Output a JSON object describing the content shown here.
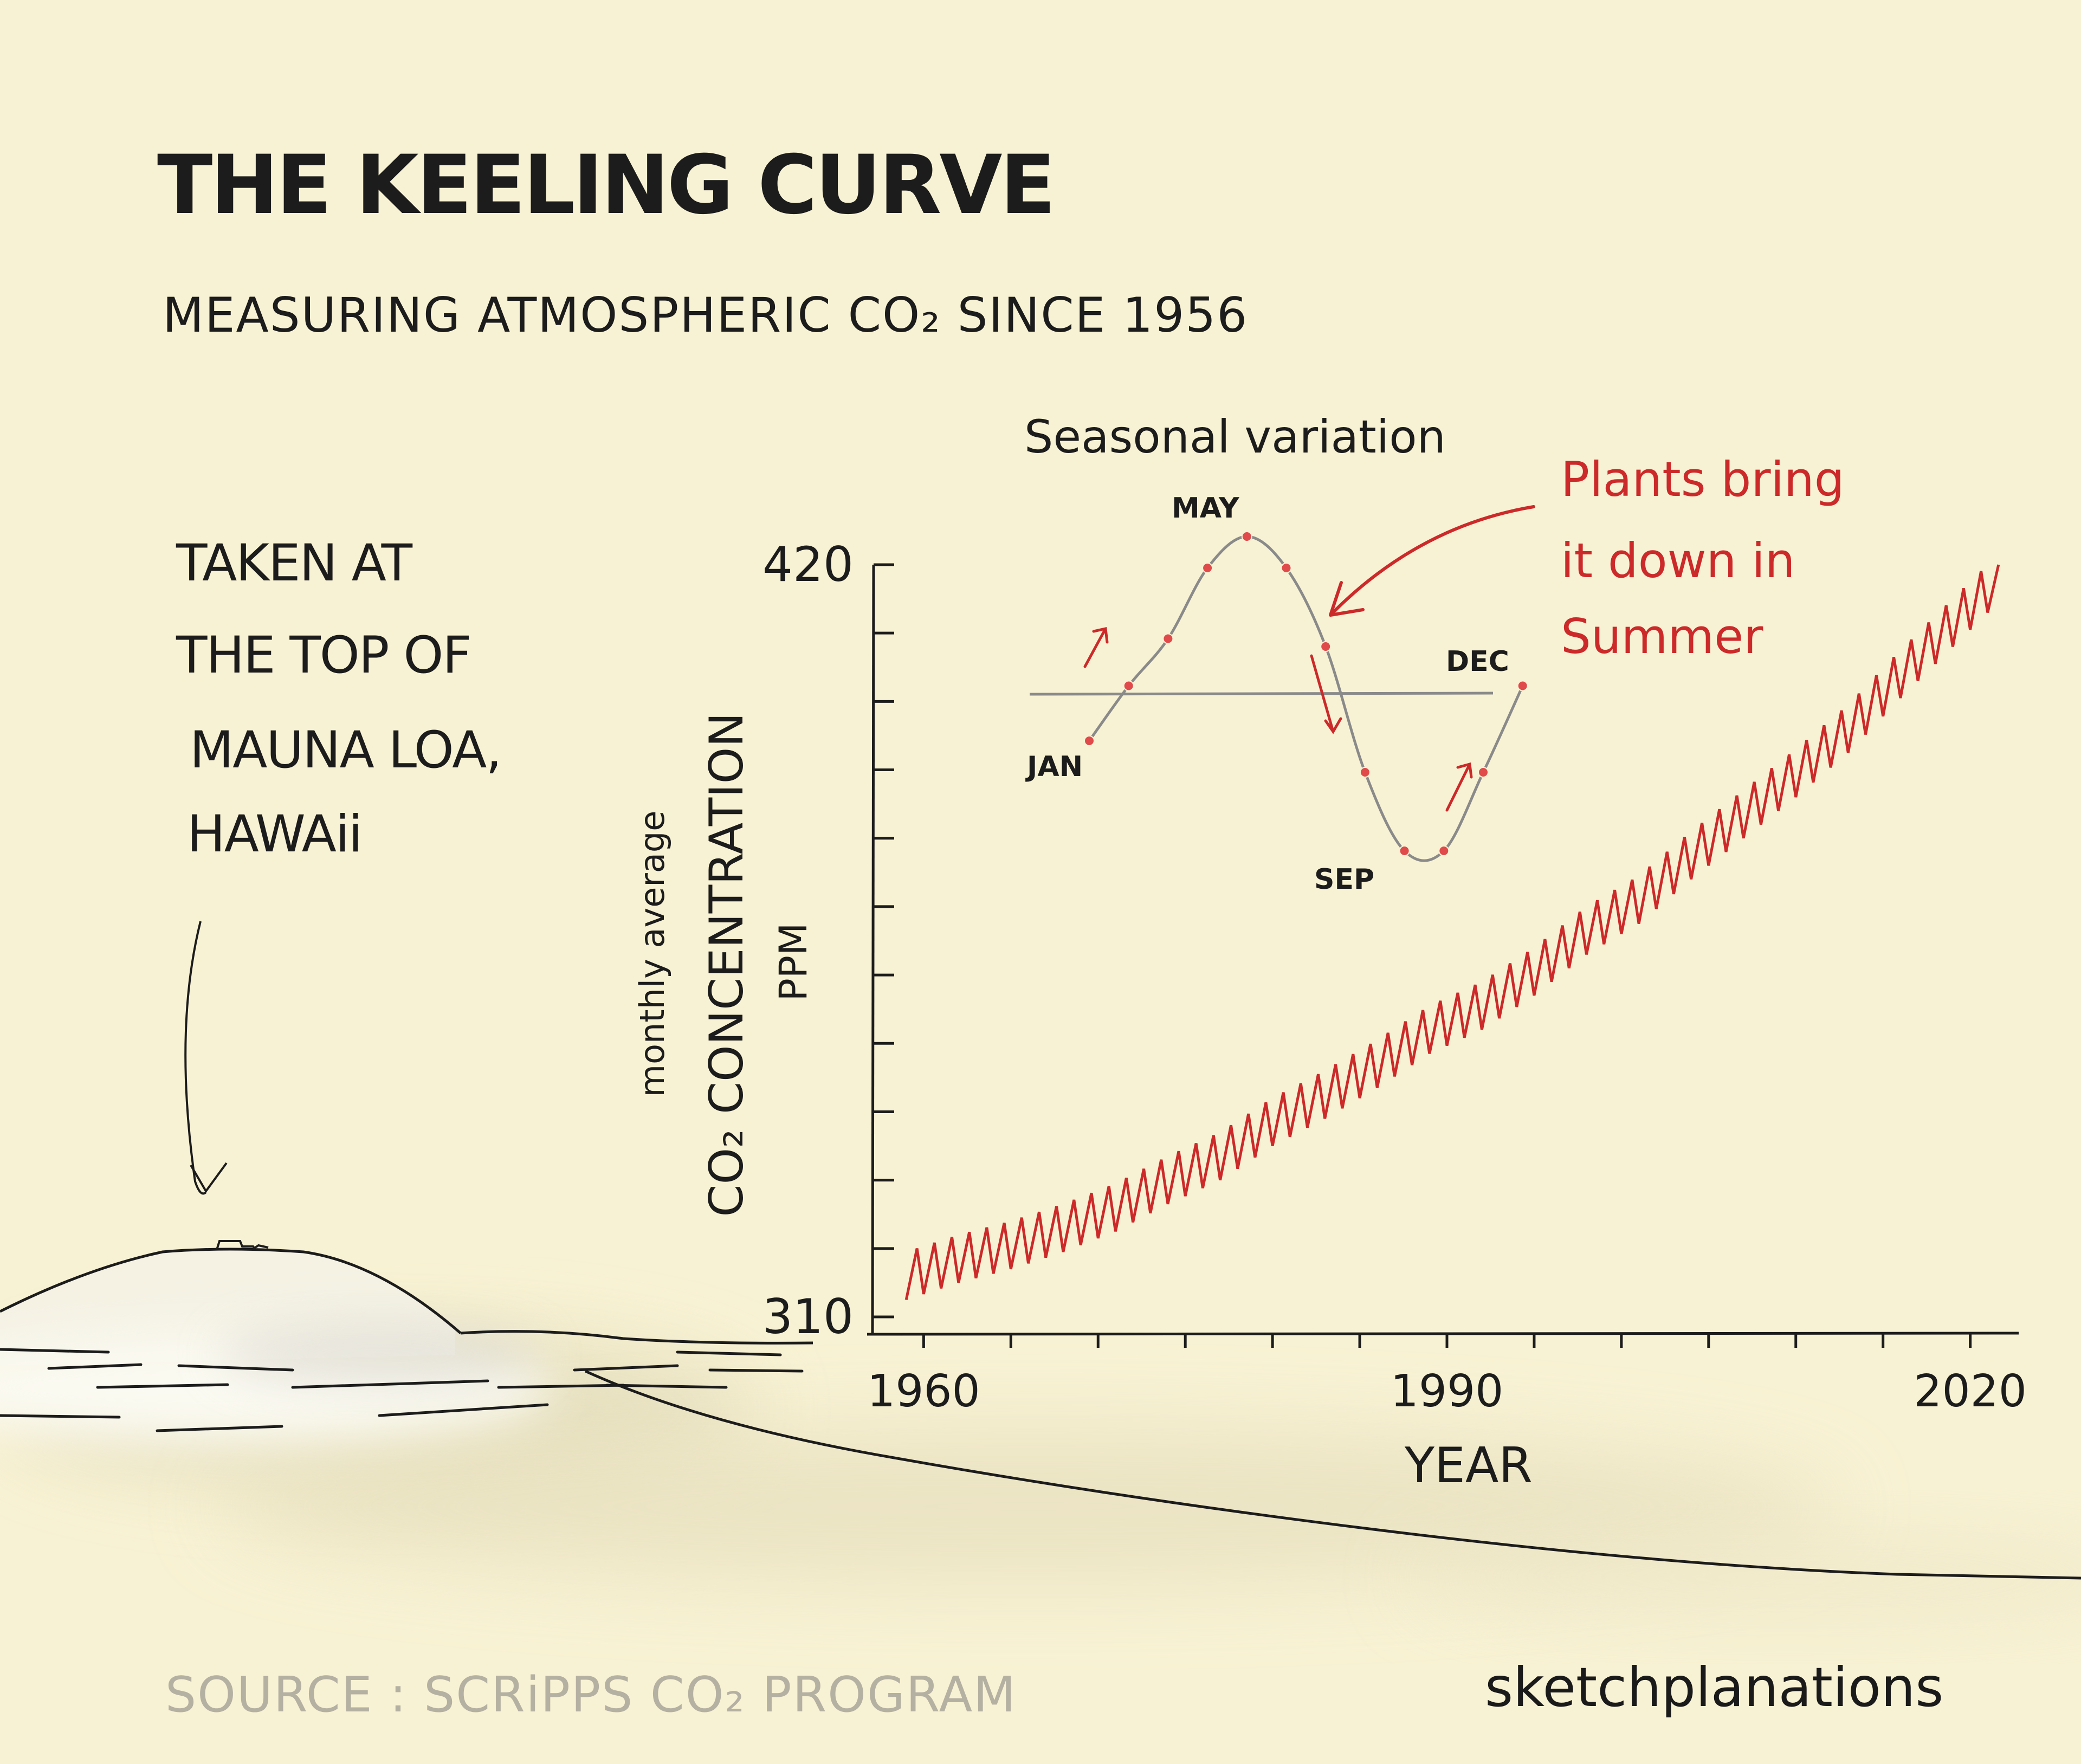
{
  "header": {
    "title": "THE KEELING CURVE",
    "subtitle": "MEASURING ATMOSPHERIC CO₂ SINCE 1956"
  },
  "location_note": {
    "line1": "TAKEN AT",
    "line2": "THE TOP OF",
    "line3": "MAUNA LOA,",
    "line4": "HAWAii"
  },
  "footer": {
    "source": "SOURCE : SCRiPPS CO₂ PROGRAM",
    "brand": "sketchplanations"
  },
  "colors": {
    "background": "#f8f2d4",
    "ink": "#1c1c1c",
    "series_red": "#cc2a2a",
    "inset_line": "#8a8a8a",
    "source_gray": "#b4b0a2"
  },
  "chart_data": [
    {
      "type": "line",
      "xlabel": "YEAR",
      "ylabel": "monthly average CO₂ CONCENTRATION PPM",
      "ylabel_parts": [
        "monthly average",
        "CO₂ CONCENTRATION",
        "PPM"
      ],
      "xlim": [
        1958,
        2022
      ],
      "ylim": [
        310,
        420
      ],
      "x_tick_labels": [
        "1960",
        "1990",
        "2020"
      ],
      "x_ticks": [
        1960,
        1965,
        1970,
        1975,
        1980,
        1985,
        1990,
        1995,
        2000,
        2005,
        2010,
        2015,
        2020
      ],
      "y_tick_labels": [
        "420",
        "310"
      ],
      "y_ticks": [
        310,
        320,
        330,
        340,
        350,
        360,
        370,
        380,
        390,
        400,
        410,
        420
      ],
      "grid": false,
      "series": [
        {
          "color": "#cc2a2a",
          "x": [
            1959,
            1962,
            1965,
            1968,
            1971,
            1974,
            1977,
            1980,
            1983,
            1986,
            1989,
            1992,
            1995,
            1998,
            2001,
            2004,
            2007,
            2010,
            2013,
            2016,
            2019,
            2021
          ],
          "values": [
            316,
            318.5,
            320.5,
            323,
            326,
            330,
            333.5,
            338.5,
            342.5,
            347,
            352,
            355.5,
            360.5,
            366.5,
            371,
            377.5,
            383.5,
            389.5,
            396,
            404,
            411.5,
            416.5
          ],
          "seasonal_amplitude": 3.5
        }
      ]
    },
    {
      "type": "line",
      "title": "Seasonal variation",
      "month_labels": [
        "JAN",
        "MAY",
        "SEP",
        "DEC"
      ],
      "x": [
        1,
        2,
        3,
        4,
        5,
        6,
        7,
        8,
        9,
        10,
        11,
        12
      ],
      "values": [
        -0.3,
        0.05,
        0.35,
        0.8,
        1.0,
        0.8,
        0.3,
        -0.5,
        -1.0,
        -1.0,
        -0.5,
        0.05
      ],
      "annotation": "Plants bring it down in Summer"
    }
  ]
}
